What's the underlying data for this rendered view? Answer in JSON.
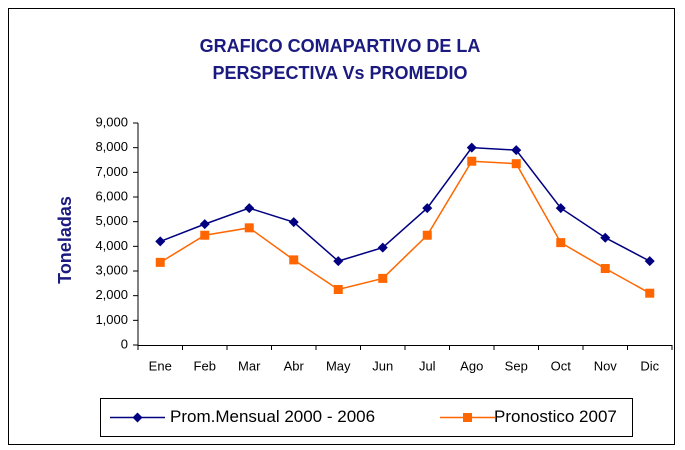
{
  "chart_data": {
    "type": "line",
    "title": "GRAFICO COMAPARTIVO DE LA PERSPECTIVA Vs PROMEDIO",
    "y_label": "Toneladas",
    "categories": [
      "Ene",
      "Feb",
      "Mar",
      "Abr",
      "May",
      "Jun",
      "Jul",
      "Ago",
      "Sep",
      "Oct",
      "Nov",
      "Dic"
    ],
    "series": [
      {
        "name": "Prom.Mensual 2000 - 2006",
        "color": "#000080",
        "marker": "diamond",
        "values": [
          4200,
          4900,
          5550,
          4980,
          3400,
          3950,
          5550,
          8000,
          7900,
          5550,
          4350,
          3400
        ]
      },
      {
        "name": "Pronostico 2007",
        "color": "#ff6600",
        "marker": "square",
        "values": [
          3350,
          4450,
          4750,
          3450,
          2250,
          2700,
          4450,
          7450,
          7350,
          4150,
          3100,
          2100
        ]
      }
    ],
    "ylim": [
      0,
      9000
    ],
    "yticks": [
      0,
      {
        "value": 1000,
        "label": "1,000"
      },
      {
        "value": 2000,
        "label": "2,000"
      },
      {
        "value": 3000,
        "label": "3,000"
      },
      {
        "value": 4000,
        "label": "4,000"
      },
      {
        "value": 5000,
        "label": "5,000"
      },
      {
        "value": 6000,
        "label": "6,000"
      },
      {
        "value": 7000,
        "label": "7,000"
      },
      {
        "value": 8000,
        "label": "8,000"
      },
      {
        "value": 9000,
        "label": "9,000"
      }
    ],
    "grid": false,
    "legend": "bottom"
  }
}
